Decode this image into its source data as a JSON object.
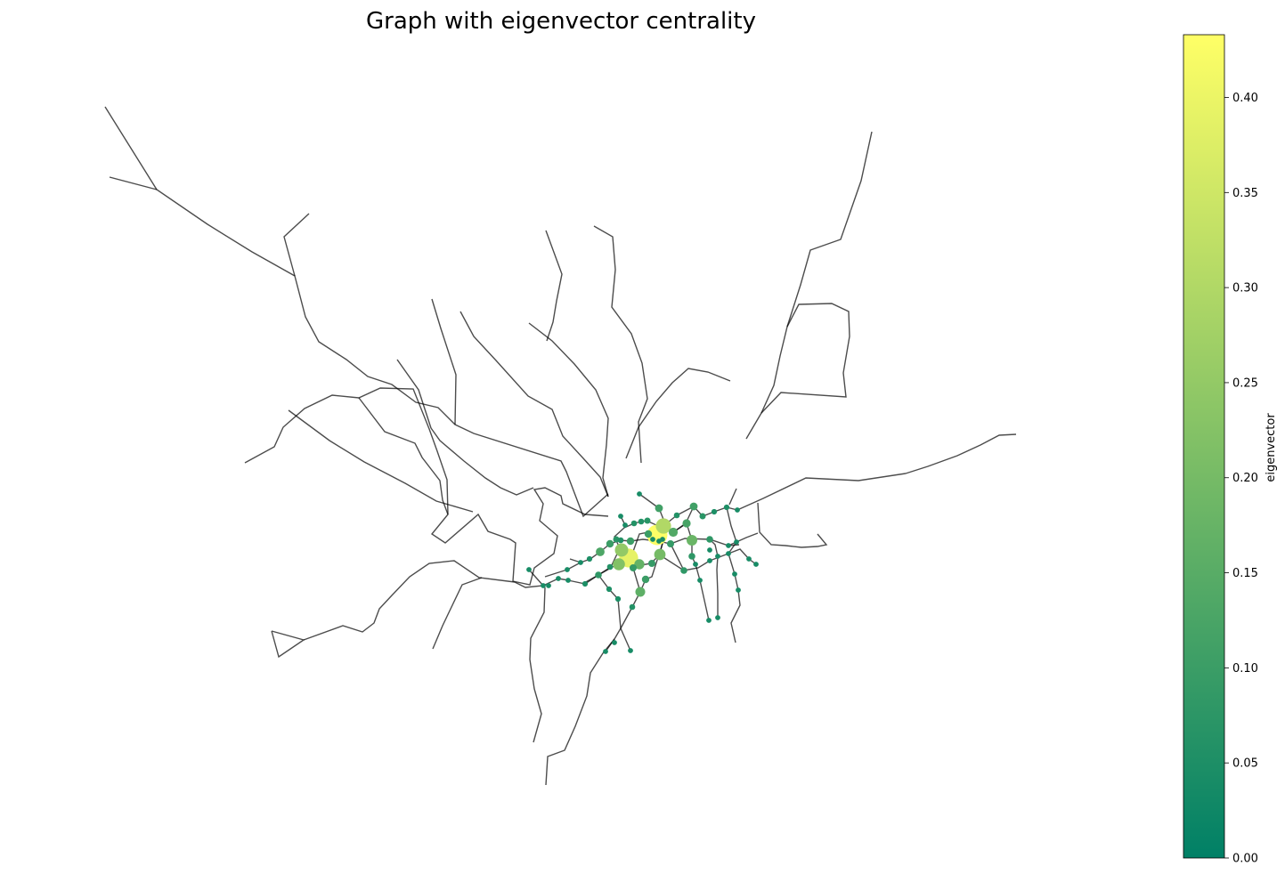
{
  "chart_data": {
    "type": "network",
    "title": "Graph with eigenvector centrality",
    "node_color_metric": "eigenvector",
    "colormap": "summer",
    "colorbar": {
      "label": "eigenvector",
      "range": [
        0.0,
        0.433
      ],
      "ticks": [
        "0.00",
        "0.05",
        "0.10",
        "0.15",
        "0.20",
        "0.25",
        "0.30",
        "0.35",
        "0.40"
      ],
      "color_low": "#008066",
      "color_high": "#ffff66"
    },
    "edge_color": "#4d4d4d",
    "axis_visible": false,
    "most_central_nodes_eigenvector": [
      0.43,
      0.39,
      0.3,
      0.25,
      0.22,
      0.2,
      0.18,
      0.17
    ]
  }
}
